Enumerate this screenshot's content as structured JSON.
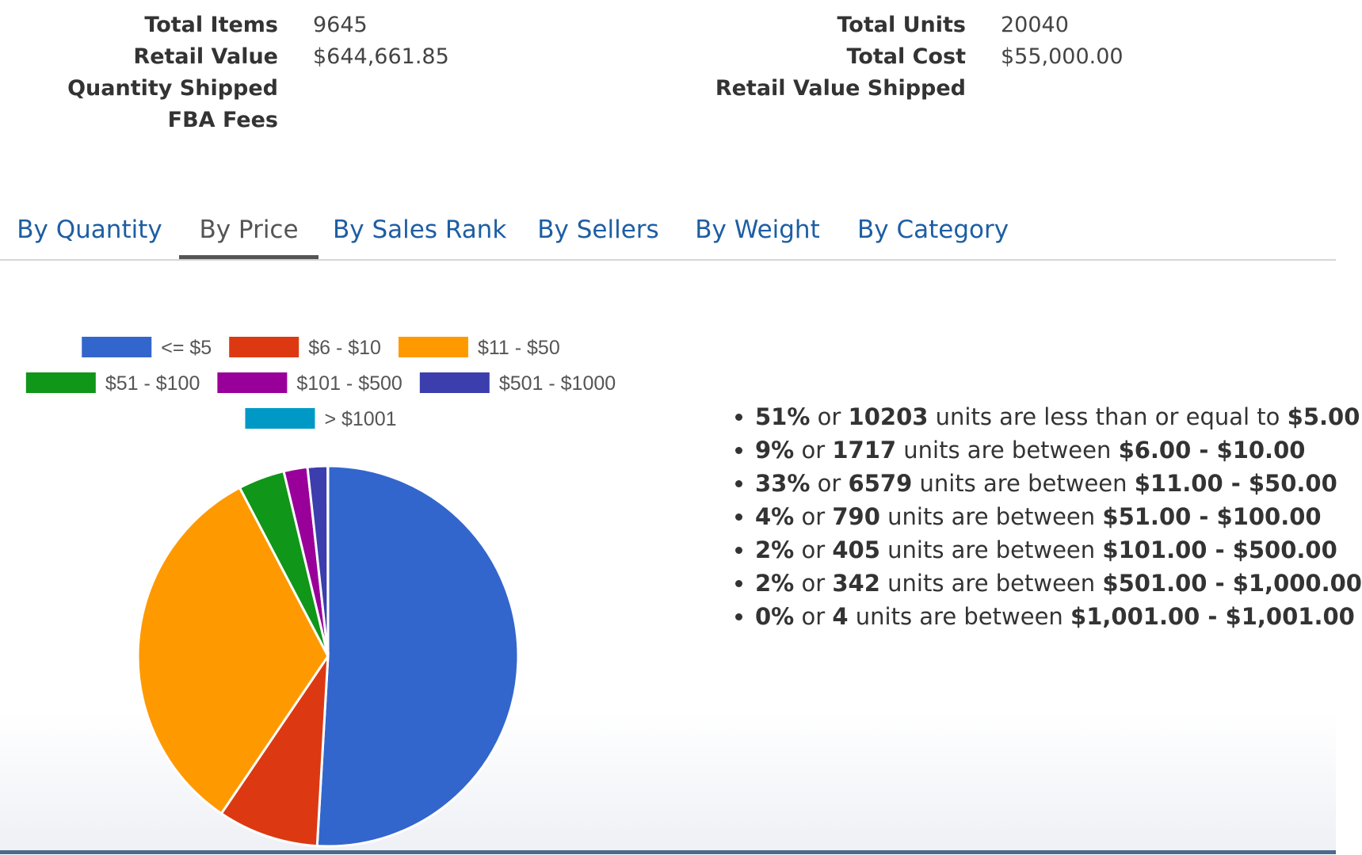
{
  "summary": {
    "left": [
      {
        "label": "Total Items",
        "value": "9645"
      },
      {
        "label": "Retail Value",
        "value": "$644,661.85"
      },
      {
        "label": "Quantity Shipped",
        "value": ""
      },
      {
        "label": "FBA Fees",
        "value": ""
      }
    ],
    "right": [
      {
        "label": "Total Units",
        "value": "20040"
      },
      {
        "label": "Total Cost",
        "value": "$55,000.00"
      },
      {
        "label": "Retail Value Shipped",
        "value": ""
      }
    ]
  },
  "tabs": [
    {
      "label": "By Quantity",
      "active": false
    },
    {
      "label": "By Price",
      "active": true
    },
    {
      "label": "By Sales Rank",
      "active": false
    },
    {
      "label": "By Sellers",
      "active": false
    },
    {
      "label": "By Weight",
      "active": false
    },
    {
      "label": "By Category",
      "active": false
    }
  ],
  "chart_data": {
    "type": "pie",
    "title": "",
    "legend_position": "top",
    "categories": [
      "<= $5",
      "$6 - $10",
      "$11 - $50",
      "$51 - $100",
      "$101 - $500",
      "$501 - $1000",
      "> $1001"
    ],
    "values": [
      10203,
      1717,
      6579,
      790,
      405,
      342,
      4
    ],
    "colors": [
      "#3366cc",
      "#dc3912",
      "#ff9900",
      "#109618",
      "#990099",
      "#3b3eac",
      "#0099c6"
    ]
  },
  "breakdown": [
    {
      "pct": "51%",
      "or": "or",
      "units": "10203",
      "mid": "units are less than or equal to",
      "range": "$5.00"
    },
    {
      "pct": "9%",
      "or": "or",
      "units": "1717",
      "mid": "units are between",
      "range": "$6.00 - $10.00"
    },
    {
      "pct": "33%",
      "or": "or",
      "units": "6579",
      "mid": "units are between",
      "range": "$11.00 - $50.00"
    },
    {
      "pct": "4%",
      "or": "or",
      "units": "790",
      "mid": "units are between",
      "range": "$51.00 - $100.00"
    },
    {
      "pct": "2%",
      "or": "or",
      "units": "405",
      "mid": "units are between",
      "range": "$101.00 - $500.00"
    },
    {
      "pct": "2%",
      "or": "or",
      "units": "342",
      "mid": "units are between",
      "range": "$501.00 - $1,000.00"
    },
    {
      "pct": "0%",
      "or": "or",
      "units": "4",
      "mid": "units are between",
      "range": "$1,001.00 - $1,001.00"
    }
  ]
}
